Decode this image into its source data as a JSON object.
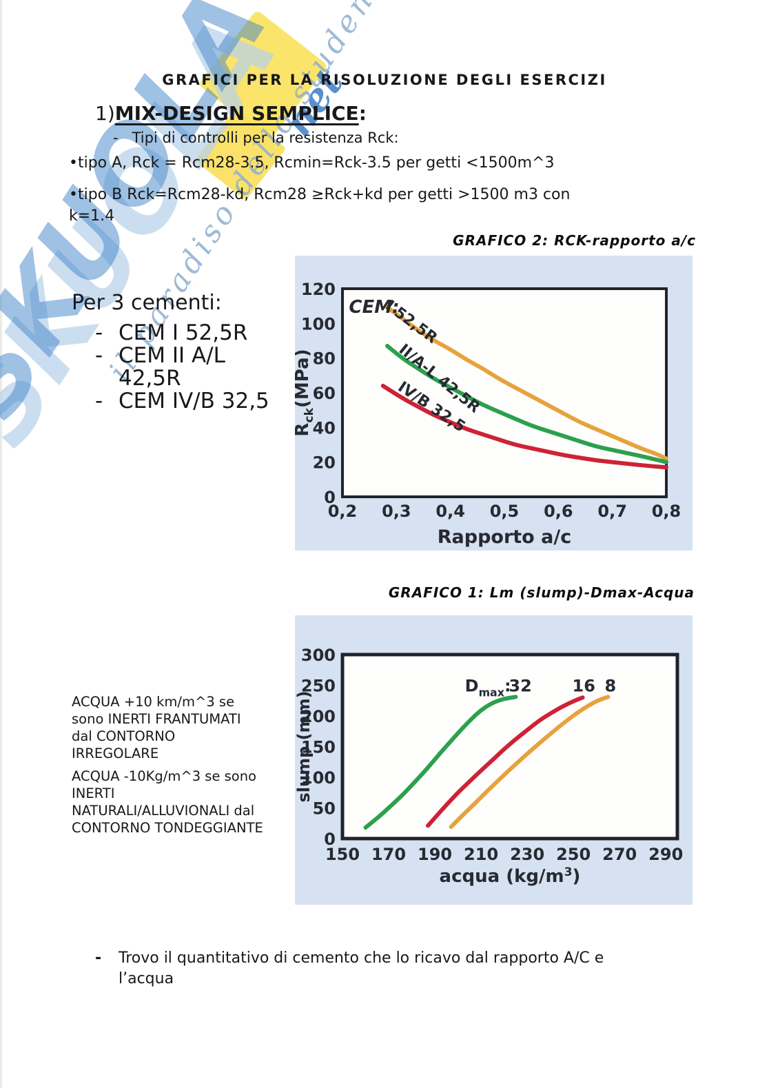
{
  "page": {
    "title": "GRAFICI PER LA RISOLUZIONE DEGLI ESERCIZI",
    "heading_num": "1)",
    "heading_phrase": "MIX-DESIGN SEMPLICE",
    "heading_colon": ":",
    "sub_bullet": "-   Tipi di controlli per la resistenza Rck:",
    "bullet_a": "•tipo A, Rck = Rcm28-3.5, Rcmin=Rck-3.5 per getti <1500m^3",
    "bullet_b": "•tipo B Rck=Rcm28-kd, Rcm28 ≥Rck+kd per getti >1500 m3 con\nk=1.4",
    "per3_cementi": "Per 3 cementi:",
    "cement_dash": "-",
    "cements": [
      "CEM I 52,5R",
      "CEM II A/L\n42,5R",
      "CEM IV/B 32,5"
    ],
    "acqua_note_1": "ACQUA +10 km/m^3 se\nsono INERTI FRANTUMATI\ndal CONTORNO\nIRREGOLARE",
    "acqua_note_2": "ACQUA -10Kg/m^3 se sono\nINERTI\nNATURALI/ALLUVIONALI dal\nCONTORNO TONDEGGIANTE",
    "bottom_dash": "-",
    "bottom_bullet": "Trovo il quantitativo di cemento che lo ricavo dal rapporto A/C e\nl’acqua",
    "watermark": {
      "brand": "SKUOLA",
      "suffix": "net",
      "slogan": "il paradiso dello studente",
      "blue": "#3f83c7",
      "pale_blue": "#b7d1ea",
      "yellow": "#fbe362"
    }
  },
  "chart_data": [
    {
      "type": "line",
      "name": "grafico-2",
      "title": "GRAFICO 2: RCK-rapporto a/c",
      "xlabel": "Rapporto a/c",
      "ylabel": "Rck(MPa)",
      "xlabel_parts": [
        {
          "t": "Rapporto a/c"
        }
      ],
      "ylabel_parts": [
        {
          "t": "R"
        },
        {
          "t": "ck",
          "sub": true
        },
        {
          "t": "(MPa)"
        }
      ],
      "x_range": [
        0.2,
        0.8
      ],
      "y_range": [
        0,
        120
      ],
      "panel_bg": "#d6e1f1",
      "grid": false,
      "legend": "inline-labels",
      "x_ticks": [
        {
          "v": 0.2,
          "label": "0,2"
        },
        {
          "v": 0.3,
          "label": "0,3"
        },
        {
          "v": 0.4,
          "label": "0,4"
        },
        {
          "v": 0.5,
          "label": "0,5"
        },
        {
          "v": 0.6,
          "label": "0,6"
        },
        {
          "v": 0.7,
          "label": "0,7"
        },
        {
          "v": 0.8,
          "label": "0,8"
        }
      ],
      "y_ticks": [
        {
          "v": 0,
          "label": "0"
        },
        {
          "v": 20,
          "label": "20"
        },
        {
          "v": 40,
          "label": "40"
        },
        {
          "v": 60,
          "label": "60"
        },
        {
          "v": 80,
          "label": "80"
        },
        {
          "v": 100,
          "label": "100"
        },
        {
          "v": 120,
          "label": "120"
        }
      ],
      "series": [
        {
          "name": "CEM I 52,5R",
          "color": "#e6a33c",
          "points": [
            [
              0.28,
              110
            ],
            [
              0.31,
              103
            ],
            [
              0.34,
              96
            ],
            [
              0.37,
              90
            ],
            [
              0.4,
              85
            ],
            [
              0.43,
              79
            ],
            [
              0.46,
              74
            ],
            [
              0.49,
              68
            ],
            [
              0.52,
              63
            ],
            [
              0.55,
              58
            ],
            [
              0.58,
              53
            ],
            [
              0.61,
              48
            ],
            [
              0.64,
              43
            ],
            [
              0.67,
              39
            ],
            [
              0.7,
              35
            ],
            [
              0.73,
              31
            ],
            [
              0.76,
              27
            ],
            [
              0.78,
              25
            ],
            [
              0.8,
              22
            ]
          ]
        },
        {
          "name": "CEM II/A-L 42,5R",
          "color": "#2ca04d",
          "points": [
            [
              0.283,
              87
            ],
            [
              0.31,
              80
            ],
            [
              0.34,
              74
            ],
            [
              0.37,
              68
            ],
            [
              0.4,
              63
            ],
            [
              0.43,
              58
            ],
            [
              0.46,
              53
            ],
            [
              0.49,
              49
            ],
            [
              0.52,
              45
            ],
            [
              0.55,
              41
            ],
            [
              0.58,
              38
            ],
            [
              0.61,
              35
            ],
            [
              0.64,
              32
            ],
            [
              0.67,
              29
            ],
            [
              0.7,
              27
            ],
            [
              0.73,
              25
            ],
            [
              0.76,
              23
            ],
            [
              0.8,
              20
            ]
          ]
        },
        {
          "name": "CEM IV/B 32,5",
          "color": "#ce2235",
          "points": [
            [
              0.275,
              64
            ],
            [
              0.31,
              57
            ],
            [
              0.34,
              52
            ],
            [
              0.37,
              47
            ],
            [
              0.4,
              43
            ],
            [
              0.43,
              39
            ],
            [
              0.46,
              36
            ],
            [
              0.49,
              33
            ],
            [
              0.52,
              30
            ],
            [
              0.55,
              28
            ],
            [
              0.58,
              26
            ],
            [
              0.61,
              24
            ],
            [
              0.64,
              22.5
            ],
            [
              0.67,
              21
            ],
            [
              0.7,
              20
            ],
            [
              0.73,
              19
            ],
            [
              0.76,
              18
            ],
            [
              0.8,
              17
            ]
          ]
        }
      ],
      "annotations": [
        {
          "text": "CEM:",
          "x": 0.212,
          "y": 106,
          "size": 26,
          "italic": true
        },
        {
          "text": "I 52,5R",
          "x": 0.278,
          "y": 109,
          "rotate": 37,
          "size": 22
        },
        {
          "text": "II/A-L 42,5R",
          "x": 0.303,
          "y": 84,
          "rotate": 39,
          "size": 22
        },
        {
          "text": "IV/B 32,5",
          "x": 0.301,
          "y": 62,
          "rotate": 34,
          "size": 22
        }
      ]
    },
    {
      "type": "line",
      "name": "grafico-1",
      "title": "GRAFICO 1: Lm (slump)-Dmax-Acqua",
      "xlabel": "acqua (kg/m³)",
      "ylabel": "slump (mm)",
      "xlabel_parts": [
        {
          "t": "acqua (kg/m"
        },
        {
          "t": "3",
          "sup": true
        },
        {
          "t": ")"
        }
      ],
      "ylabel_parts": [
        {
          "t": "slump (mm)"
        }
      ],
      "x_range": [
        150,
        295
      ],
      "y_range": [
        0,
        300
      ],
      "panel_bg": "#d6e1f1",
      "grid": false,
      "legend": "inline-labels",
      "x_ticks": [
        {
          "v": 150,
          "label": "150"
        },
        {
          "v": 170,
          "label": "170"
        },
        {
          "v": 190,
          "label": "190"
        },
        {
          "v": 210,
          "label": "210"
        },
        {
          "v": 230,
          "label": "230"
        },
        {
          "v": 250,
          "label": "250"
        },
        {
          "v": 270,
          "label": "270"
        },
        {
          "v": 290,
          "label": "290"
        }
      ],
      "y_ticks": [
        {
          "v": 0,
          "label": "0"
        },
        {
          "v": 50,
          "label": "50"
        },
        {
          "v": 100,
          "label": "100"
        },
        {
          "v": 150,
          "label": "150"
        },
        {
          "v": 200,
          "label": "200"
        },
        {
          "v": 250,
          "label": "250"
        },
        {
          "v": 300,
          "label": "300"
        }
      ],
      "series": [
        {
          "name": "Dmax 32",
          "color": "#2ca04d",
          "points": [
            [
              160,
              18
            ],
            [
              164,
              30
            ],
            [
              168,
              43
            ],
            [
              172,
              57
            ],
            [
              176,
              71
            ],
            [
              180,
              87
            ],
            [
              184,
              103
            ],
            [
              188,
              120
            ],
            [
              192,
              138
            ],
            [
              196,
              155
            ],
            [
              200,
              172
            ],
            [
              204,
              188
            ],
            [
              208,
              203
            ],
            [
              212,
              215
            ],
            [
              216,
              223
            ],
            [
              220,
              228
            ],
            [
              225,
              231
            ]
          ]
        },
        {
          "name": "Dmax 16",
          "color": "#ce2235",
          "points": [
            [
              187,
              21
            ],
            [
              191,
              38
            ],
            [
              195,
              55
            ],
            [
              200,
              75
            ],
            [
              205,
              93
            ],
            [
              210,
              111
            ],
            [
              215,
              128
            ],
            [
              220,
              146
            ],
            [
              225,
              162
            ],
            [
              230,
              177
            ],
            [
              235,
              192
            ],
            [
              240,
              204
            ],
            [
              245,
              215
            ],
            [
              250,
              224
            ],
            [
              254,
              230
            ]
          ]
        },
        {
          "name": "Dmax 8",
          "color": "#e6a33c",
          "points": [
            [
              197,
              19
            ],
            [
              202,
              38
            ],
            [
              207,
              56
            ],
            [
              212,
              75
            ],
            [
              217,
              93
            ],
            [
              222,
              111
            ],
            [
              227,
              128
            ],
            [
              232,
              145
            ],
            [
              237,
              161
            ],
            [
              242,
              177
            ],
            [
              247,
              192
            ],
            [
              252,
              206
            ],
            [
              257,
              218
            ],
            [
              261,
              226
            ],
            [
              265,
              231
            ]
          ]
        }
      ],
      "annotations": [
        {
          "parts": [
            {
              "t": "D"
            },
            {
              "t": "max",
              "sub": true
            },
            {
              "t": ": "
            }
          ],
          "x": 203,
          "y": 240,
          "size": 24
        },
        {
          "text": "32",
          "x": 227,
          "y": 240,
          "anchor": "middle",
          "size": 24
        },
        {
          "text": "16",
          "x": 254.5,
          "y": 240,
          "anchor": "middle",
          "size": 24
        },
        {
          "text": "8",
          "x": 266,
          "y": 240,
          "anchor": "middle",
          "size": 24
        }
      ]
    }
  ]
}
